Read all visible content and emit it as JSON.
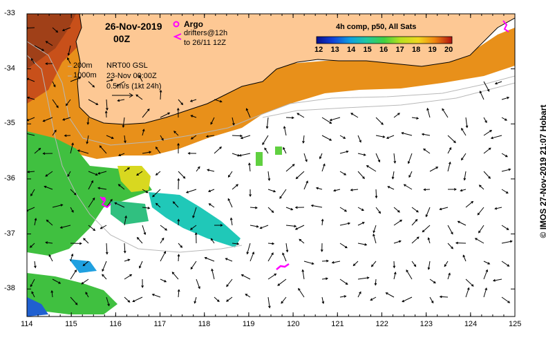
{
  "title": {
    "date": "26-Nov-2019",
    "hour": "00Z"
  },
  "legend": {
    "argo_label": "Argo",
    "drifters_label": "drifters@12h",
    "drifters_range": "to 26/11 12Z",
    "argo_color": "#ff00ff"
  },
  "colorbar": {
    "title": "4h comp, p50, All Sats",
    "ticks": [
      "12",
      "13",
      "14",
      "15",
      "16",
      "17",
      "18",
      "19",
      "20"
    ]
  },
  "info": {
    "isobath_shallow": "200m",
    "isobath_deep": "1000m",
    "product": "NRT00 GSL",
    "product_date": "23-Nov 00:00Z",
    "scale": "0.5m/s (1kt 24h)"
  },
  "axes": {
    "lon_ticks": [
      "114",
      "115",
      "116",
      "117",
      "118",
      "119",
      "120",
      "121",
      "122",
      "123",
      "124",
      "125"
    ],
    "lat_ticks": [
      "-33",
      "-34",
      "-35",
      "-36",
      "-37",
      "-38"
    ],
    "lon_range": [
      114,
      125
    ],
    "lat_range": [
      -38.5,
      -33
    ]
  },
  "credit": "© IMOS 27-Nov-2019 21:07 Hobart",
  "colors": {
    "land": "#fdc894",
    "ocean": "#ffffff",
    "argo": "#ff00ff"
  }
}
